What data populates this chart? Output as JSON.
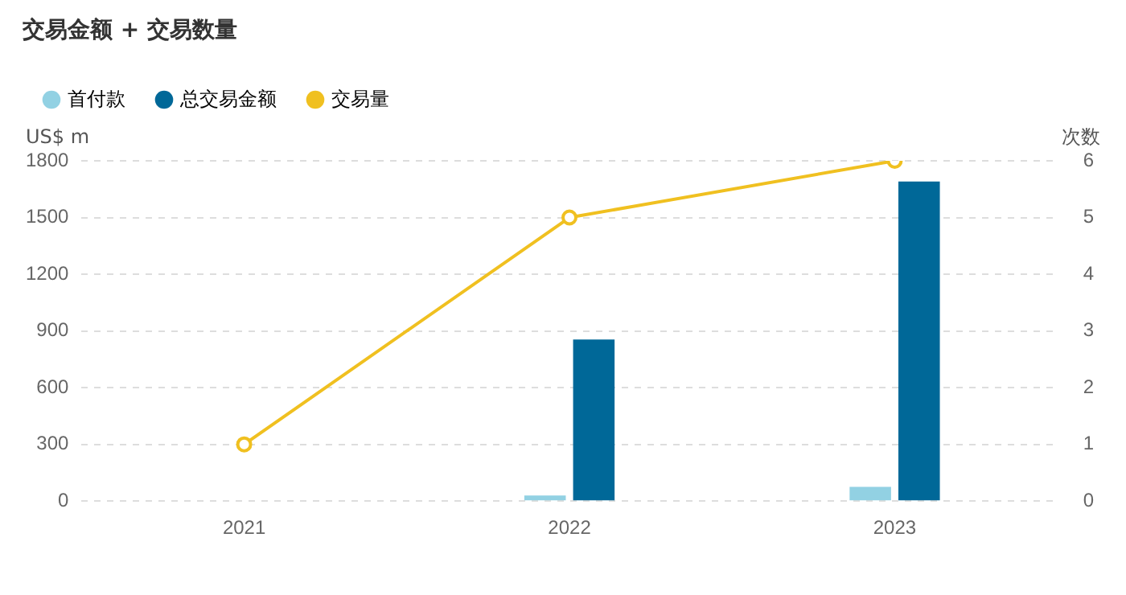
{
  "chart_data": {
    "type": "bar",
    "title": "交易金额 + 交易数量",
    "categories": [
      "2021",
      "2022",
      "2023"
    ],
    "series": [
      {
        "name": "首付款",
        "color": "#92d1e3",
        "values": [
          null,
          30,
          75
        ]
      },
      {
        "name": "总交易金额",
        "color": "#006898",
        "values": [
          null,
          855,
          1690
        ]
      },
      {
        "name": "交易量",
        "type": "line",
        "axis": "y2",
        "color": "#f0c020",
        "values": [
          1,
          5,
          6
        ],
        "marker": "circle"
      }
    ],
    "ylabel": "US$ m",
    "y2label": "次数",
    "ylim": [
      0,
      1800
    ],
    "yticks": [
      0,
      300,
      600,
      900,
      1200,
      1500,
      1800
    ],
    "y2lim": [
      0,
      6
    ],
    "y2ticks": [
      0,
      1,
      2,
      3,
      4,
      5,
      6
    ],
    "grid": "y",
    "legend": "top left"
  }
}
